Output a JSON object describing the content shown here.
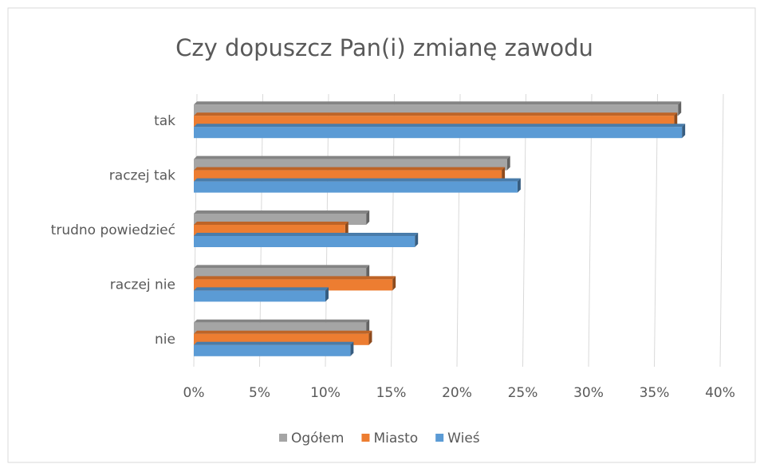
{
  "chart_data": {
    "type": "bar",
    "orientation": "horizontal",
    "title": "Czy dopuszcz Pan(i) zmianę zawodu",
    "categories": [
      "tak",
      "raczej tak",
      "trudno powiedzieć",
      "raczej nie",
      "nie"
    ],
    "series": [
      {
        "name": "Ogółem",
        "color": "#a5a5a5",
        "values": [
          36.8,
          23.8,
          13.1,
          13.1,
          13.1
        ]
      },
      {
        "name": "Miasto",
        "color": "#ed7d31",
        "values": [
          36.5,
          23.4,
          11.5,
          15.1,
          13.3
        ]
      },
      {
        "name": "Wieś",
        "color": "#5b9bd5",
        "values": [
          37.1,
          24.6,
          16.8,
          10.0,
          11.9
        ]
      }
    ],
    "xlim": [
      0,
      40
    ],
    "xticks": [
      {
        "value": 0,
        "label": "0%"
      },
      {
        "value": 5,
        "label": "5%"
      },
      {
        "value": 10,
        "label": "10%"
      },
      {
        "value": 15,
        "label": "15%"
      },
      {
        "value": 20,
        "label": "20%"
      },
      {
        "value": 25,
        "label": "25%"
      },
      {
        "value": 30,
        "label": "30%"
      },
      {
        "value": 35,
        "label": "35%"
      },
      {
        "value": 40,
        "label": "40%"
      }
    ],
    "grid": true,
    "legend": "bottom"
  }
}
